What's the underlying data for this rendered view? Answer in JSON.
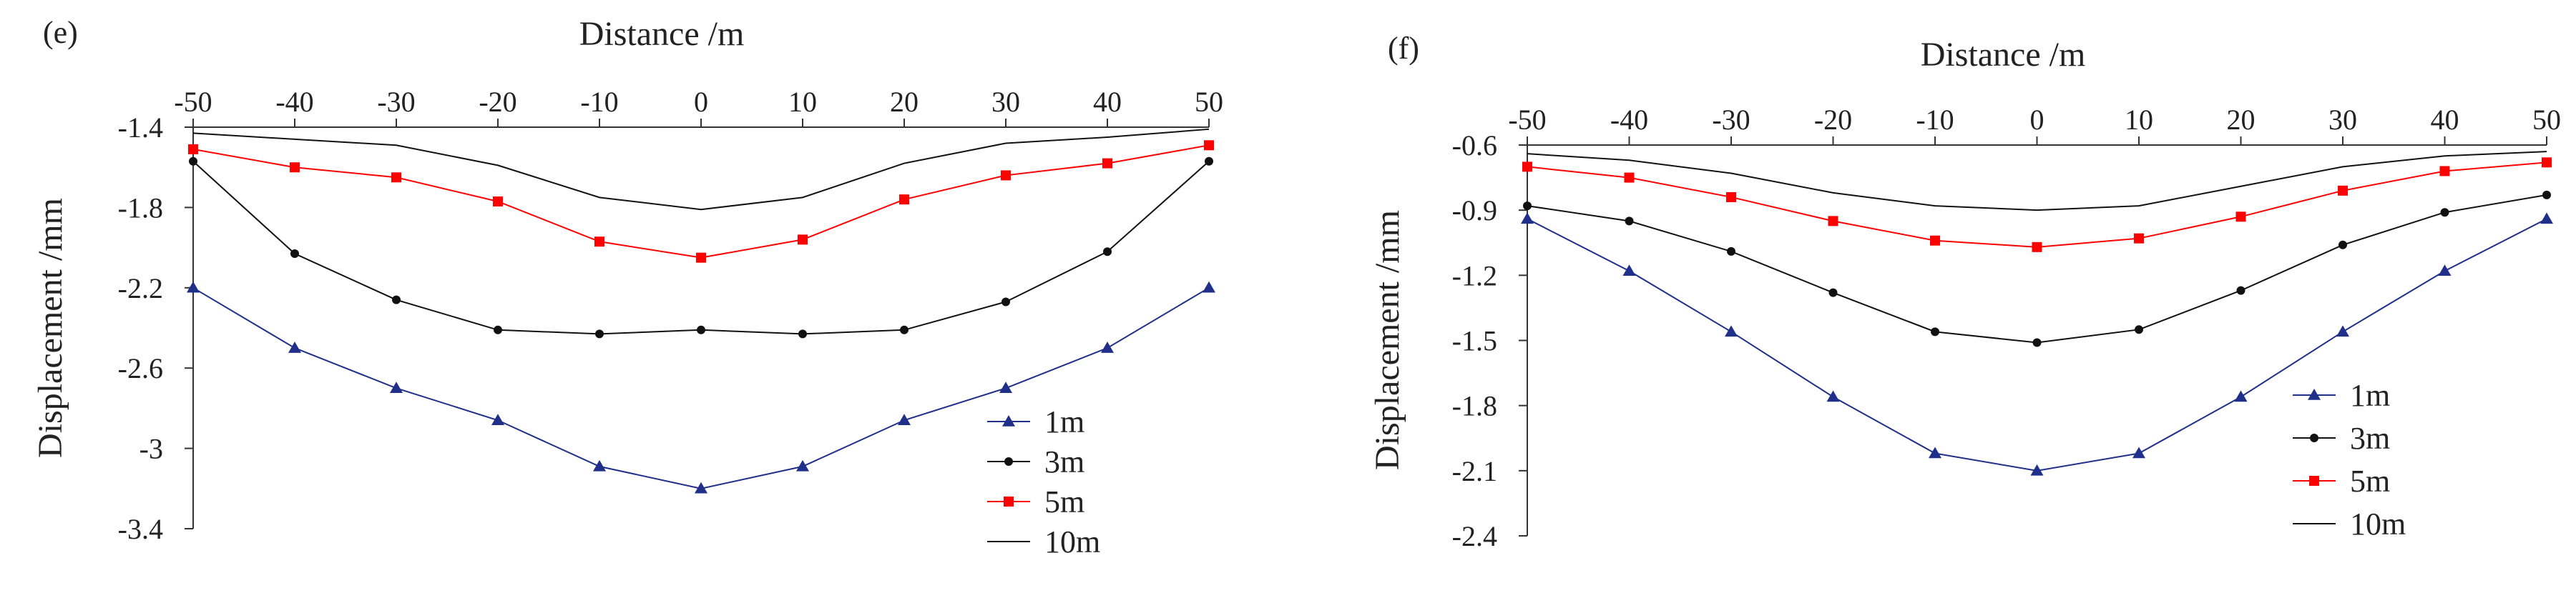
{
  "chart_data": [
    {
      "panel": "(e)",
      "type": "line",
      "xlabel": "Distance /m",
      "ylabel": "Displacement /mm",
      "x": [
        -50,
        -40,
        -30,
        -20,
        -10,
        0,
        10,
        20,
        30,
        40,
        50
      ],
      "xticks": [
        "-50",
        "-40",
        "-30",
        "-20",
        "-10",
        "0",
        "10",
        "20",
        "30",
        "40",
        "50"
      ],
      "xlim": [
        -50,
        50
      ],
      "ylim": [
        -3.4,
        -1.4
      ],
      "yticks": [
        -1.4,
        -1.8,
        -2.2,
        -2.6,
        -3,
        -3.4
      ],
      "ytick_labels": [
        "-1.4",
        "-1.8",
        "-2.2",
        "-2.6",
        "-3",
        "-3.4"
      ],
      "x_axis_position": "top",
      "grid": false,
      "legend_position": "bottom-right",
      "series": [
        {
          "name": "1m",
          "marker": "triangle",
          "color": "#1f2f8a",
          "values": [
            -2.2,
            -2.5,
            -2.7,
            -2.86,
            -3.09,
            -3.2,
            -3.09,
            -2.86,
            -2.7,
            -2.5,
            -2.2
          ]
        },
        {
          "name": "3m",
          "marker": "circle",
          "color": "#111111",
          "values": [
            -1.57,
            -2.03,
            -2.26,
            -2.41,
            -2.43,
            -2.41,
            -2.43,
            -2.41,
            -2.27,
            -2.02,
            -1.57
          ]
        },
        {
          "name": "5m",
          "marker": "square",
          "color": "#ff0000",
          "values": [
            -1.51,
            -1.6,
            -1.65,
            -1.77,
            -1.97,
            -2.05,
            -1.96,
            -1.76,
            -1.64,
            -1.58,
            -1.49
          ]
        },
        {
          "name": "10m",
          "marker": "none",
          "color": "#111111",
          "values": [
            -1.43,
            -1.46,
            -1.49,
            -1.59,
            -1.75,
            -1.81,
            -1.75,
            -1.58,
            -1.48,
            -1.45,
            -1.41
          ]
        }
      ]
    },
    {
      "panel": "(f)",
      "type": "line",
      "xlabel": "Distance /m",
      "ylabel": "Displacement /mm",
      "x": [
        -50,
        -40,
        -30,
        -20,
        -10,
        0,
        10,
        20,
        30,
        40,
        50
      ],
      "xticks": [
        "-50",
        "-40",
        "-30",
        "-20",
        "-10",
        "0",
        "10",
        "20",
        "30",
        "40",
        "50"
      ],
      "xlim": [
        -50,
        50
      ],
      "ylim": [
        -2.4,
        -0.6
      ],
      "yticks": [
        -0.6,
        -0.9,
        -1.2,
        -1.5,
        -1.8,
        -2.1,
        -2.4
      ],
      "ytick_labels": [
        "-0.6",
        "-0.9",
        "-1.2",
        "-1.5",
        "-1.8",
        "-2.1",
        "-2.4"
      ],
      "x_axis_position": "top",
      "grid": false,
      "legend_position": "bottom-right",
      "series": [
        {
          "name": "1m",
          "marker": "triangle",
          "color": "#1f2f8a",
          "values": [
            -0.94,
            -1.18,
            -1.46,
            -1.76,
            -2.02,
            -2.1,
            -2.02,
            -1.76,
            -1.46,
            -1.18,
            -0.94
          ]
        },
        {
          "name": "3m",
          "marker": "circle",
          "color": "#111111",
          "values": [
            -0.88,
            -0.95,
            -1.09,
            -1.28,
            -1.46,
            -1.51,
            -1.45,
            -1.27,
            -1.06,
            -0.91,
            -0.83
          ]
        },
        {
          "name": "5m",
          "marker": "square",
          "color": "#ff0000",
          "values": [
            -0.7,
            -0.75,
            -0.84,
            -0.95,
            -1.04,
            -1.07,
            -1.03,
            -0.93,
            -0.81,
            -0.72,
            -0.68
          ]
        },
        {
          "name": "10m",
          "marker": "none",
          "color": "#111111",
          "values": [
            -0.64,
            -0.67,
            -0.73,
            -0.82,
            -0.88,
            -0.9,
            -0.88,
            -0.79,
            -0.7,
            -0.65,
            -0.63
          ]
        }
      ]
    }
  ]
}
